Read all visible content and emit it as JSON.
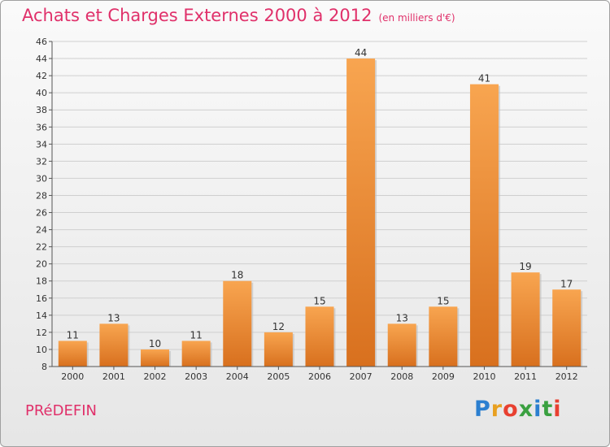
{
  "header": {
    "title": "Achats et Charges Externes 2000 à 2012",
    "subtitle": "(en milliers d'€)"
  },
  "footer": {
    "location": "PRéDEFIN",
    "brand": "Proxiti"
  },
  "colors": {
    "title": "#e0306a",
    "bar_light": "#f8a550",
    "bar_dark": "#d8701e"
  },
  "chart_data": {
    "type": "bar",
    "title": "Achats et Charges Externes 2000 à 2012",
    "subtitle": "(en milliers d'€)",
    "categories": [
      "2000",
      "2001",
      "2002",
      "2003",
      "2004",
      "2005",
      "2006",
      "2007",
      "2008",
      "2009",
      "2010",
      "2011",
      "2012"
    ],
    "values": [
      11,
      13,
      10,
      11,
      18,
      12,
      15,
      44,
      13,
      15,
      41,
      19,
      17
    ],
    "ylim": [
      8,
      46
    ],
    "yticks": [
      8,
      10,
      12,
      14,
      16,
      18,
      20,
      22,
      24,
      26,
      28,
      30,
      32,
      34,
      36,
      38,
      40,
      42,
      44,
      46
    ],
    "grid": true,
    "legend": "none"
  }
}
